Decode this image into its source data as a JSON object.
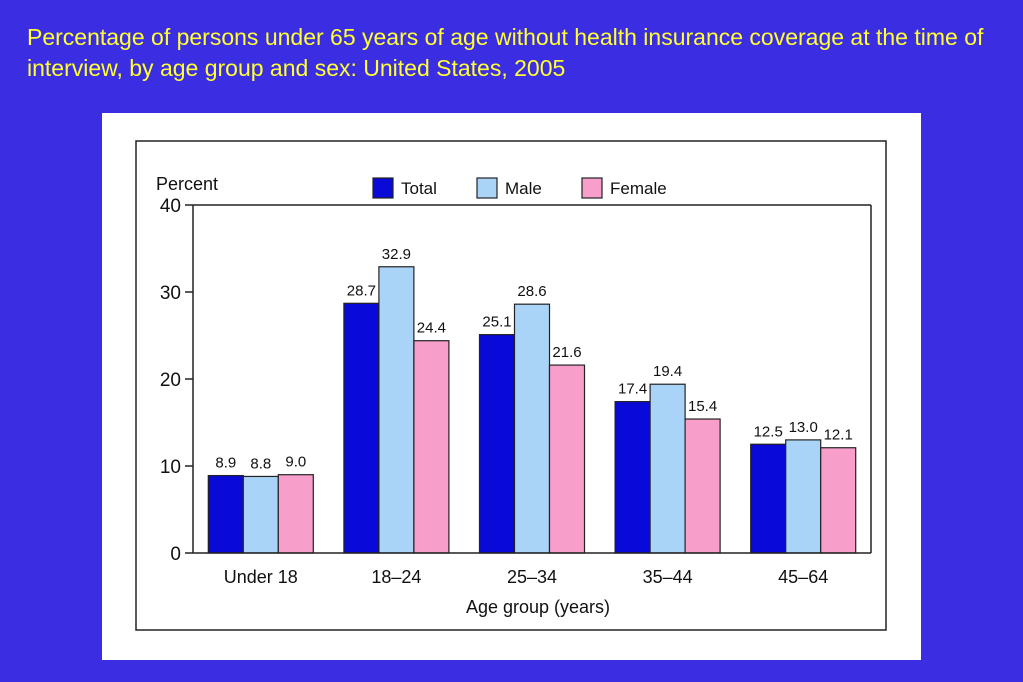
{
  "slide": {
    "title": "Percentage of persons under 65 years of age without health insurance coverage at the time of interview, by age group and sex: United States, 2005"
  },
  "colors": {
    "background": "#3b2ee2",
    "title": "#ffff33",
    "total": "#0a0ad8",
    "male": "#a9d4f7",
    "female": "#f79ecb"
  },
  "chart_data": {
    "type": "bar",
    "title": "",
    "ylabel": "Percent",
    "xlabel": "Age group (years)",
    "ylim": [
      0,
      40
    ],
    "yticks": [
      "0",
      "10",
      "20",
      "30",
      "40"
    ],
    "categories": [
      "Under 18",
      "18–24",
      "25–34",
      "35–44",
      "45–64"
    ],
    "legend_position": "top",
    "grid": false,
    "series": [
      {
        "name": "Total",
        "values": [
          8.9,
          28.7,
          25.1,
          17.4,
          12.5
        ],
        "labels": [
          "8.9",
          "28.7",
          "25.1",
          "17.4",
          "12.5"
        ]
      },
      {
        "name": "Male",
        "values": [
          8.8,
          32.9,
          28.6,
          19.4,
          13.0
        ],
        "labels": [
          "8.8",
          "32.9",
          "28.6",
          "19.4",
          "13.0"
        ]
      },
      {
        "name": "Female",
        "values": [
          9.0,
          24.4,
          21.6,
          15.4,
          12.1
        ],
        "labels": [
          "9.0",
          "24.4",
          "21.6",
          "15.4",
          "12.1"
        ]
      }
    ]
  }
}
